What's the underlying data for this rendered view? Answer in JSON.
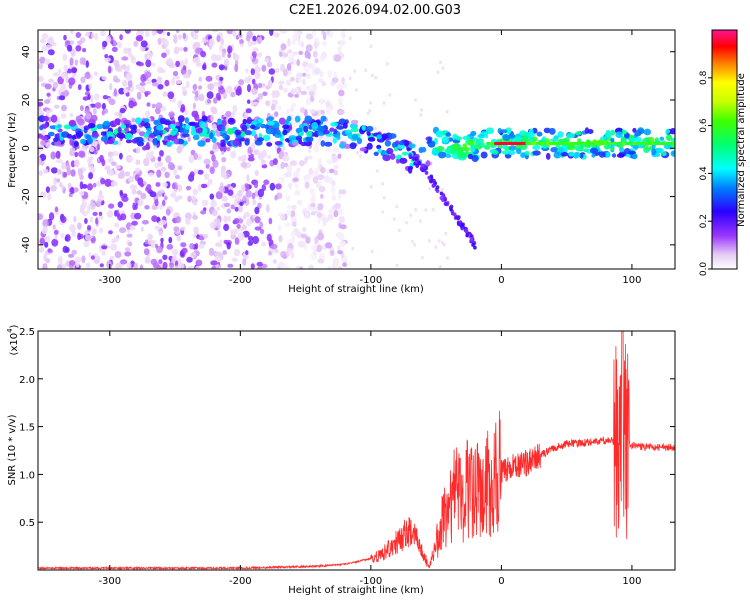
{
  "title": "C2E1.2026.094.02.00.G03",
  "colors": {
    "snr_line": "#ff2a2a",
    "axis": "#000000",
    "background": "#ffffff"
  },
  "chart_data": [
    {
      "type": "heatmap",
      "name": "spectrogram",
      "xlabel": "Height of straight line (km)",
      "ylabel": "Frequency (Hz)",
      "xlim": [
        -355,
        133
      ],
      "ylim": [
        -50,
        49
      ],
      "xticks": [
        -300,
        -200,
        -100,
        0,
        100
      ],
      "yticks": [
        -40,
        -20,
        0,
        20,
        40
      ],
      "xtick_labels": [
        "-300",
        "-200",
        "-100",
        "0",
        "100"
      ],
      "ytick_labels": [
        "-40",
        "-20",
        "0",
        "20",
        "40"
      ],
      "ridge": {
        "x": [
          -355,
          -300,
          -250,
          -200,
          -150,
          -120,
          -100,
          -90,
          -80,
          -70,
          -60,
          -50,
          -40,
          -30,
          -20,
          -10,
          0,
          20,
          50,
          80,
          100,
          133
        ],
        "freq": [
          7,
          7,
          7,
          7,
          7,
          6.5,
          4,
          2,
          -1,
          -4,
          -4,
          3,
          1,
          0,
          1,
          2,
          2,
          2,
          2,
          2,
          2,
          2
        ]
      },
      "branch": {
        "x": [
          -70,
          -60,
          -50,
          -40,
          -30,
          -20
        ],
        "freq": [
          -4,
          -8,
          -16,
          -24,
          -32,
          -40
        ]
      },
      "colorbar": {
        "label": "Normalized spectral amplitude",
        "range": [
          0,
          1
        ],
        "ticks": [
          0.0,
          0.2,
          0.4,
          0.6,
          0.8
        ],
        "tick_labels": [
          "0.0",
          "0.2",
          "0.4",
          "0.6",
          "0.8"
        ]
      }
    },
    {
      "type": "line",
      "name": "snr",
      "xlabel": "Height of straight line (km)",
      "ylabel": "SNR (10 * v/v)",
      "yscale_label": "(x10",
      "yscale_exp": "4",
      "yscale_close": ")",
      "xlim": [
        -355,
        133
      ],
      "ylim": [
        0,
        2.5
      ],
      "xticks": [
        -300,
        -200,
        -100,
        0,
        100
      ],
      "yticks": [
        0.5,
        1.0,
        1.5,
        2.0,
        2.5
      ],
      "xtick_labels": [
        "-300",
        "-200",
        "-100",
        "0",
        "100"
      ],
      "ytick_labels": [
        "0.5",
        "1.0",
        "1.5",
        "2.0",
        "2.5"
      ],
      "envelope": {
        "x": [
          -355,
          -200,
          -140,
          -120,
          -100,
          -90,
          -80,
          -72,
          -65,
          -60,
          -55,
          -50,
          -45,
          -40,
          -35,
          -30,
          -25,
          -20,
          -10,
          0,
          10,
          20,
          30,
          40,
          50,
          60,
          80,
          85,
          88,
          92,
          95,
          100,
          110,
          133
        ],
        "y": [
          0.02,
          0.02,
          0.04,
          0.06,
          0.12,
          0.18,
          0.3,
          0.4,
          0.35,
          0.15,
          0.05,
          0.25,
          0.55,
          0.72,
          0.8,
          0.7,
          0.9,
          0.8,
          0.9,
          1.05,
          1.1,
          1.12,
          1.2,
          1.27,
          1.32,
          1.33,
          1.35,
          1.36,
          1.3,
          1.32,
          1.3,
          1.3,
          1.29,
          1.28
        ]
      }
    }
  ]
}
